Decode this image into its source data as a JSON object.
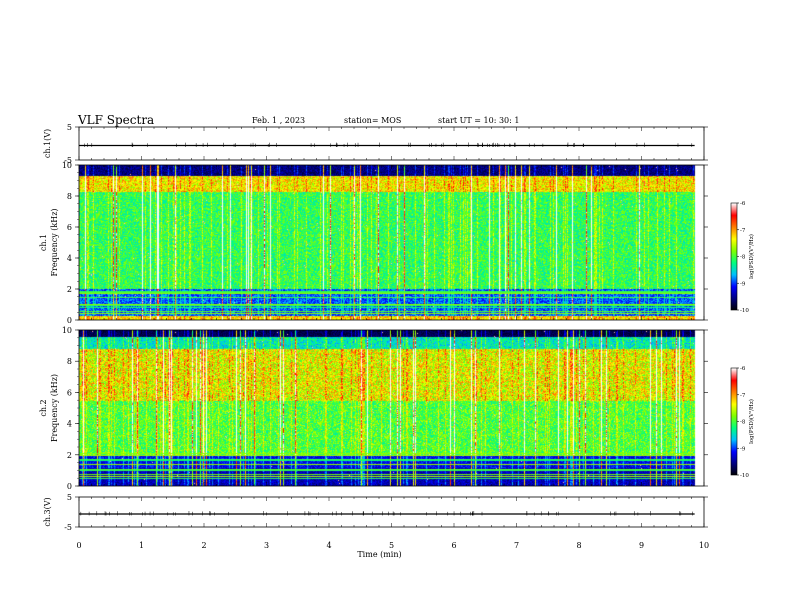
{
  "header": {
    "title": "VLF Spectra",
    "date": "Feb. 1 , 2023",
    "station": "station= MOS",
    "start": "start UT = 10: 30: 1"
  },
  "chart_data": [
    {
      "type": "line",
      "ylabel": "ch.1(V)",
      "xlim": [
        0,
        10
      ],
      "ylim": [
        -5,
        5
      ],
      "yticks": [
        "5",
        "-5"
      ],
      "series": [
        {
          "values": [
            {
              "x": 0,
              "y": 0
            },
            {
              "x": 9.85,
              "y": 0
            }
          ]
        }
      ]
    },
    {
      "type": "heatmap",
      "ylabel": [
        "ch.1",
        "Frequency (kHz)"
      ],
      "xlim": [
        0,
        10
      ],
      "ylim": [
        0,
        10
      ],
      "yticks": [
        "0",
        "2",
        "4",
        "6",
        "8",
        "10"
      ],
      "data_extent_x": [
        0,
        9.85
      ],
      "colorbar": {
        "label": "log(PSD)(V²/Hz)",
        "ticks": [
          "-6",
          "-7",
          "-8",
          "-9",
          "-10"
        ],
        "range": [
          -10,
          -6
        ]
      }
    },
    {
      "type": "heatmap",
      "ylabel": [
        "ch.2",
        "Frequency (kHz)"
      ],
      "xlim": [
        0,
        10
      ],
      "ylim": [
        0,
        10
      ],
      "yticks": [
        "0",
        "2",
        "4",
        "6",
        "8",
        "10"
      ],
      "data_extent_x": [
        0,
        9.85
      ],
      "colorbar": {
        "label": "log(PSD)(V²/Hz)",
        "ticks": [
          "-6",
          "-7",
          "-8",
          "-9",
          "-10"
        ],
        "range": [
          -10,
          -6
        ]
      }
    },
    {
      "type": "line",
      "ylabel": "ch.3(V)",
      "xlim": [
        0,
        10
      ],
      "ylim": [
        -5,
        5
      ],
      "yticks": [
        "5",
        "-5"
      ],
      "series": [
        {
          "values": [
            {
              "x": 0,
              "y": 0
            },
            {
              "x": 9.85,
              "y": 0
            }
          ]
        }
      ]
    }
  ],
  "xaxis": {
    "label": "Time (min)",
    "ticks": [
      "0",
      "1",
      "2",
      "3",
      "4",
      "5",
      "6",
      "7",
      "8",
      "9",
      "10"
    ]
  },
  "colormap": [
    "#000000",
    "#00007f",
    "#0000ff",
    "#00bfff",
    "#00ff7f",
    "#7fff00",
    "#ffff00",
    "#ff7f00",
    "#ff0000",
    "#ffffff"
  ]
}
